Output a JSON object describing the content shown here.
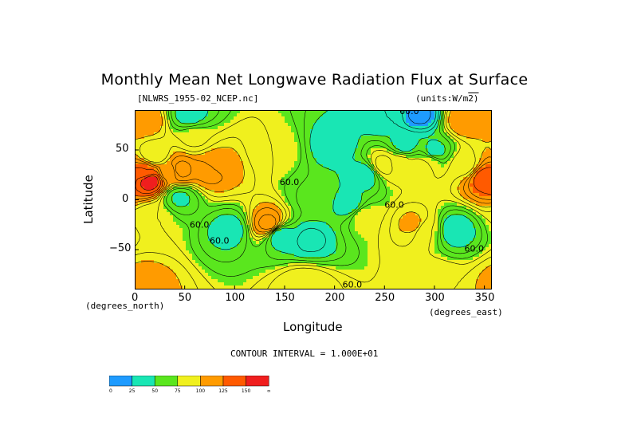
{
  "chart_data": {
    "type": "heatmap",
    "title": "Monthly Mean Net Longwave Radiation Flux at Surface",
    "file_label": "[NLWRS_1955-02_NCEP.nc]",
    "units_label": "(units:W/m^2)",
    "xlabel": "Longitude",
    "ylabel": "Latitude",
    "x_unit_label": "(degrees_east)",
    "y_unit_label": "(degrees_north)",
    "xlim": [
      0,
      357.5
    ],
    "ylim": [
      -90,
      90
    ],
    "x_ticks": [
      "0",
      "50",
      "100",
      "150",
      "200",
      "250",
      "300",
      "350"
    ],
    "y_ticks": [
      "50",
      "0",
      "−50"
    ],
    "contour_interval_label": "CONTOUR INTERVAL = 1.000E+01",
    "contour_labels": [
      "60.0",
      "60.0",
      "60.0",
      "60.0",
      "60.0",
      "60.0",
      "60.0"
    ],
    "colorbar": {
      "bins": [
        {
          "from": 0,
          "to": 25,
          "color": "#1e9bff"
        },
        {
          "from": 25,
          "to": 50,
          "color": "#19e6b4"
        },
        {
          "from": 50,
          "to": 75,
          "color": "#5ae61e"
        },
        {
          "from": 75,
          "to": 100,
          "color": "#f0f01e"
        },
        {
          "from": 100,
          "to": 125,
          "color": "#ff9b00"
        },
        {
          "from": 125,
          "to": 150,
          "color": "#ff5a00"
        },
        {
          "from": 150,
          "to": 175,
          "color": "#f01e1e"
        }
      ],
      "tick_labels": [
        "0",
        "25",
        "50",
        "75",
        "100",
        "125",
        "150",
        "∞"
      ]
    },
    "field_regions": [
      {
        "lon": 180,
        "lat": 0,
        "value": 58,
        "note": "background mid-latitude/tropical field"
      },
      {
        "lon": 45,
        "lat": 2,
        "value": 48
      },
      {
        "lon": 230,
        "lat": 25,
        "value": 42
      },
      {
        "lon": 215,
        "lat": -5,
        "value": 44
      },
      {
        "lon": 95,
        "lat": -30,
        "value": 45
      },
      {
        "lon": 145,
        "lat": -35,
        "value": 40
      },
      {
        "lon": 175,
        "lat": -40,
        "value": 38
      },
      {
        "lon": 200,
        "lat": 55,
        "value": 42
      },
      {
        "lon": 270,
        "lat": 55,
        "value": 45
      },
      {
        "lon": 300,
        "lat": 48,
        "value": 45
      },
      {
        "lon": 320,
        "lat": -30,
        "value": 42
      },
      {
        "lon": 55,
        "lat": 85,
        "value": 45
      },
      {
        "lon": 250,
        "lat": 83,
        "value": 40
      },
      {
        "lon": 285,
        "lat": 85,
        "value": 18
      },
      {
        "lon": 15,
        "lat": 20,
        "value": 160
      },
      {
        "lon": 12,
        "lat": 27,
        "value": 130
      },
      {
        "lon": 45,
        "lat": 30,
        "value": 125
      },
      {
        "lon": 75,
        "lat": 30,
        "value": 115
      },
      {
        "lon": 80,
        "lat": 35,
        "value": 105
      },
      {
        "lon": 350,
        "lat": 22,
        "value": 135
      },
      {
        "lon": 330,
        "lat": 35,
        "value": 85
      },
      {
        "lon": 285,
        "lat": 33,
        "value": 85
      },
      {
        "lon": 295,
        "lat": 38,
        "value": 80
      },
      {
        "lon": 250,
        "lat": 35,
        "value": 95
      },
      {
        "lon": 265,
        "lat": 37,
        "value": 85
      },
      {
        "lon": 230,
        "lat": -17,
        "value": 80
      },
      {
        "lon": 280,
        "lat": -25,
        "value": 105
      },
      {
        "lon": 290,
        "lat": -30,
        "value": 80
      },
      {
        "lon": 135,
        "lat": -25,
        "value": 125
      },
      {
        "lon": 20,
        "lat": -18,
        "value": 80
      },
      {
        "lon": 35,
        "lat": 28,
        "value": 100
      },
      {
        "lon": 140,
        "lat": 50,
        "value": 80
      },
      {
        "lon": 10,
        "lat": -85,
        "value": 105
      },
      {
        "lon": 170,
        "lat": -86,
        "value": 100
      },
      {
        "lon": 300,
        "lat": -84,
        "value": 90
      },
      {
        "lon": 10,
        "lat": 80,
        "value": 110
      },
      {
        "lon": 330,
        "lat": 80,
        "value": 110
      },
      {
        "lon": 20,
        "lat": 45,
        "value": 80
      },
      {
        "lon": 60,
        "lat": 62,
        "value": 78
      }
    ]
  }
}
